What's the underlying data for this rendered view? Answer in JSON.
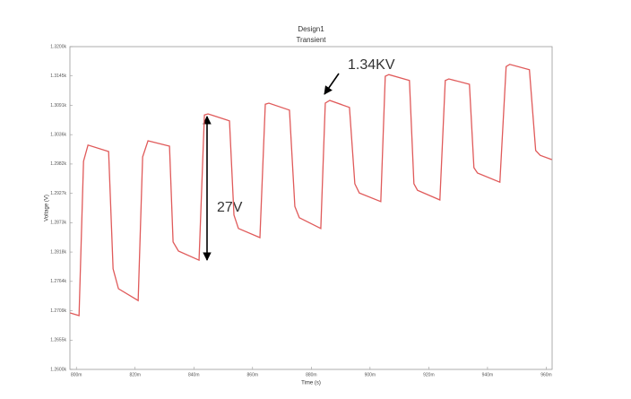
{
  "chart_data": {
    "type": "line",
    "title": "Design1",
    "subtitle": "Transient",
    "xlabel": "Time (s)",
    "ylabel": "Voltage (V)",
    "annotations": [
      "1.34KV",
      "27V"
    ],
    "x": [
      0.79787,
      0.80091,
      0.80244,
      0.80396,
      0.81098,
      0.8125,
      0.81433,
      0.82104,
      0.82256,
      0.82439,
      0.83171,
      0.83293,
      0.83476,
      0.84177,
      0.8436,
      0.84482,
      0.85214,
      0.85366,
      0.85518,
      0.8625,
      0.86433,
      0.86555,
      0.87256,
      0.87439,
      0.87591,
      0.88323,
      0.88476,
      0.88628,
      0.89299,
      0.89482,
      0.89634,
      0.90366,
      0.90518,
      0.9064,
      0.91341,
      0.91494,
      0.91616,
      0.92378,
      0.92561,
      0.92683,
      0.93384,
      0.93537,
      0.93659,
      0.94421,
      0.94634,
      0.94756,
      0.95427,
      0.9564,
      0.95793,
      0.96189
    ],
    "series": [
      {
        "color": "#e05a5a",
        "values": [
          1270.5,
          1270,
          1298.7,
          1301.7,
          1300.5,
          1278.7,
          1275,
          1272.8,
          1299.5,
          1302.5,
          1301.5,
          1283.7,
          1282,
          1280.3,
          1307.3,
          1307.5,
          1306.2,
          1288.7,
          1286.2,
          1284.5,
          1309.3,
          1309.5,
          1308.2,
          1290.3,
          1288.2,
          1286.2,
          1309.5,
          1310,
          1308.7,
          1294.5,
          1292.8,
          1291.2,
          1314.5,
          1314.8,
          1313.7,
          1294.5,
          1293.3,
          1291.5,
          1313.7,
          1314,
          1313,
          1297.5,
          1296.5,
          1294.8,
          1316.3,
          1316.7,
          1315.7,
          1300.7,
          1299.8,
          1299
        ]
      }
    ],
    "xlim": [
      0.7978,
      0.962
    ],
    "xticks": [
      {
        "value": 0.8,
        "label": "800m"
      },
      {
        "value": 0.82,
        "label": "820m"
      },
      {
        "value": 0.84,
        "label": "840m"
      },
      {
        "value": 0.86,
        "label": "860m"
      },
      {
        "value": 0.88,
        "label": "880m"
      },
      {
        "value": 0.9,
        "label": "900m"
      },
      {
        "value": 0.92,
        "label": "920m"
      },
      {
        "value": 0.94,
        "label": "940m"
      },
      {
        "value": 0.96,
        "label": "960m"
      }
    ],
    "ylim": [
      1260,
      1320
    ],
    "yticks": [
      {
        "value": 1260,
        "label": "1.2600k"
      },
      {
        "value": 1265.45,
        "label": "1.2655k"
      },
      {
        "value": 1270.91,
        "label": "1.2709k"
      },
      {
        "value": 1276.36,
        "label": "1.2764k"
      },
      {
        "value": 1281.82,
        "label": "1.2818k"
      },
      {
        "value": 1287.27,
        "label": "1.2873k"
      },
      {
        "value": 1292.73,
        "label": "1.2927k"
      },
      {
        "value": 1298.18,
        "label": "1.2982k"
      },
      {
        "value": 1303.64,
        "label": "1.3036k"
      },
      {
        "value": 1309.09,
        "label": "1.3091k"
      },
      {
        "value": 1314.55,
        "label": "1.3145k"
      },
      {
        "value": 1320,
        "label": "1.3200k"
      }
    ]
  }
}
